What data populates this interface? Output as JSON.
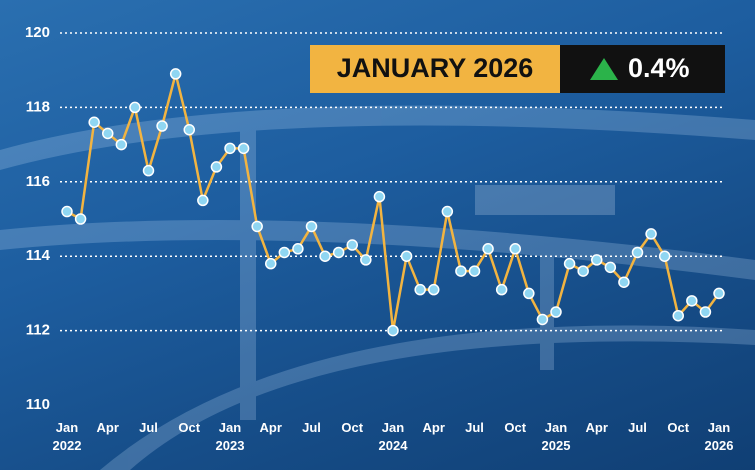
{
  "headline": {
    "period": "JANUARY 2026",
    "change": "0.4%"
  },
  "chart_data": {
    "type": "line",
    "categories": [
      "Jan 2022",
      null,
      null,
      "Apr",
      null,
      null,
      "Jul",
      null,
      null,
      "Oct",
      null,
      null,
      "Jan 2023",
      null,
      null,
      "Apr",
      null,
      null,
      "Jul",
      null,
      null,
      "Oct",
      null,
      null,
      "Jan 2024",
      null,
      null,
      "Apr",
      null,
      null,
      "Jul",
      null,
      null,
      "Oct",
      null,
      null,
      "Jan 2025",
      null,
      null,
      "Apr",
      null,
      null,
      "Jul",
      null,
      null,
      "Oct",
      null,
      null,
      "Jan 2026"
    ],
    "values": [
      115.2,
      115.0,
      117.6,
      117.3,
      117.0,
      118.0,
      116.3,
      117.5,
      118.9,
      117.4,
      115.5,
      116.4,
      116.9,
      116.9,
      114.8,
      113.8,
      114.1,
      114.2,
      114.8,
      114.0,
      114.1,
      114.3,
      113.9,
      115.6,
      112.0,
      114.0,
      113.1,
      113.1,
      115.2,
      113.6,
      113.6,
      114.2,
      113.1,
      114.2,
      113.0,
      112.3,
      112.5,
      113.8,
      113.6,
      113.9,
      113.7,
      113.3,
      114.1,
      114.6,
      114.0,
      112.4,
      112.8,
      112.5,
      113.0
    ],
    "color": "#f2b441",
    "marker_color": "#8fd6f2",
    "ylim": [
      110,
      120
    ],
    "yticks": [
      110,
      112,
      114,
      116,
      118,
      120
    ],
    "grid": true
  }
}
